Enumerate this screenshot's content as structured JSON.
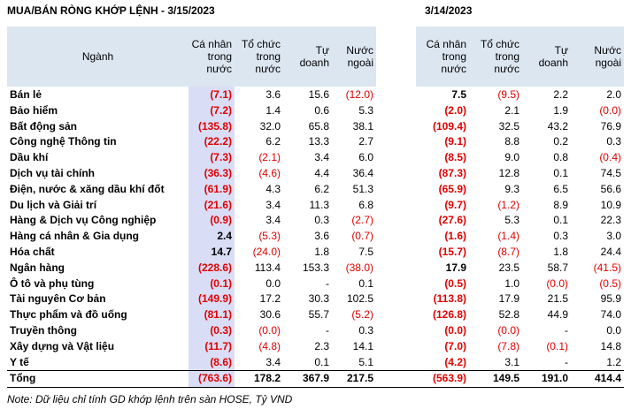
{
  "title_left": "MUA/BÁN RÒNG KHỚP LỆNH - 3/15/2023",
  "title_right": "3/14/2023",
  "table": {
    "header": [
      "Ngành",
      "Cá nhân trong nước",
      "Tổ chức trong nước",
      "Tự doanh",
      "Nước ngoài",
      "Cá nhân trong nước",
      "Tổ chức trong nước",
      "Tự doanh",
      "Nước ngoài"
    ],
    "rows": [
      [
        "Bán lẻ",
        "(7.1)",
        "3.6",
        "15.6",
        "(12.0)",
        "7.5",
        "(9.5)",
        "2.2",
        "2.0"
      ],
      [
        "Bảo hiểm",
        "(7.2)",
        "1.4",
        "0.6",
        "5.3",
        "(2.0)",
        "2.1",
        "1.9",
        "(0.0)"
      ],
      [
        "Bất động sản",
        "(135.8)",
        "32.0",
        "65.8",
        "38.1",
        "(109.4)",
        "32.5",
        "43.2",
        "76.9"
      ],
      [
        "Công nghệ Thông tin",
        "(22.2)",
        "6.2",
        "13.3",
        "2.7",
        "(9.1)",
        "8.8",
        "0.2",
        "0.3"
      ],
      [
        "Dầu khí",
        "(7.3)",
        "(2.1)",
        "3.4",
        "6.0",
        "(8.5)",
        "9.0",
        "0.8",
        "(0.4)"
      ],
      [
        "Dịch vụ tài chính",
        "(36.3)",
        "(4.6)",
        "4.4",
        "36.4",
        "(87.3)",
        "12.8",
        "0.1",
        "74.5"
      ],
      [
        "Điện, nước & xăng dầu khí đốt",
        "(61.9)",
        "4.3",
        "6.2",
        "51.3",
        "(65.9)",
        "9.3",
        "6.5",
        "56.6"
      ],
      [
        "Du lịch và Giải trí",
        "(21.6)",
        "3.4",
        "11.3",
        "6.8",
        "(9.7)",
        "(1.2)",
        "8.9",
        "10.9"
      ],
      [
        "Hàng & Dịch vụ Công nghiệp",
        "(0.9)",
        "3.4",
        "0.3",
        "(2.7)",
        "(27.6)",
        "5.3",
        "0.1",
        "22.3"
      ],
      [
        "Hàng cá nhân & Gia dụng",
        "2.4",
        "(5.3)",
        "3.6",
        "(0.7)",
        "(1.6)",
        "(1.4)",
        "0.3",
        "3.0"
      ],
      [
        "Hóa chất",
        "14.7",
        "(24.0)",
        "1.8",
        "7.5",
        "(15.7)",
        "(8.7)",
        "1.8",
        "24.4"
      ],
      [
        "Ngân hàng",
        "(228.6)",
        "113.4",
        "153.3",
        "(38.0)",
        "17.9",
        "23.5",
        "58.7",
        "(41.5)"
      ],
      [
        "Ô tô và phụ tùng",
        "(0.1)",
        "0.0",
        "-",
        "0.1",
        "(0.5)",
        "1.0",
        "(0.0)",
        "(0.5)"
      ],
      [
        "Tài nguyên Cơ bản",
        "(149.9)",
        "17.2",
        "30.3",
        "102.5",
        "(113.8)",
        "17.9",
        "21.5",
        "95.9"
      ],
      [
        "Thực phẩm và đồ uống",
        "(81.1)",
        "30.6",
        "55.7",
        "(5.2)",
        "(126.8)",
        "52.8",
        "44.9",
        "74.0"
      ],
      [
        "Truyền thông",
        "(0.3)",
        "(0.0)",
        "-",
        "0.3",
        "(0.0)",
        "(0.0)",
        "-",
        "0.0"
      ],
      [
        "Xây dựng và Vật liệu",
        "(11.7)",
        "(4.8)",
        "2.3",
        "14.1",
        "(7.0)",
        "(7.8)",
        "(0.1)",
        "14.8"
      ],
      [
        "Y tế",
        "(8.6)",
        "3.4",
        "0.1",
        "5.1",
        "(4.2)",
        "3.1",
        "-",
        "1.2"
      ]
    ],
    "total": [
      "Tổng",
      "(763.6)",
      "178.2",
      "367.9",
      "217.5",
      "(563.9)",
      "149.5",
      "191.0",
      "414.4"
    ]
  },
  "note": "Note: Dữ liệu chỉ tính GD khớp lệnh trên sàn HOSE, Tỷ VND"
}
